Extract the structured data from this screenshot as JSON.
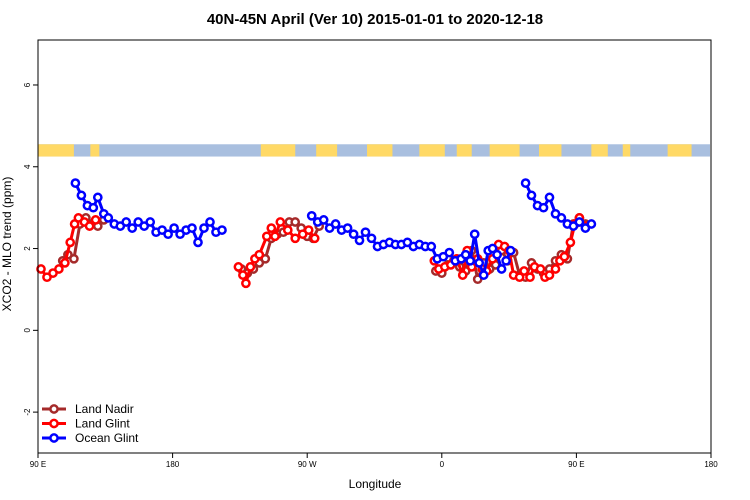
{
  "chart_data": {
    "type": "line",
    "title": "40N-45N April (Ver 10)   2015-01-01 to 2020-12-18",
    "xlabel": "Longitude",
    "ylabel": "XCO2 - MLO trend (ppm)",
    "xlim": [
      90,
      460
    ],
    "ylim": [
      -3,
      7.1
    ],
    "x_ticks": [
      {
        "value": 90,
        "label": "90 E"
      },
      {
        "value": 180,
        "label": "180"
      },
      {
        "value": 270,
        "label": "90 W"
      },
      {
        "value": 360,
        "label": "0"
      },
      {
        "value": 450,
        "label": "90 E"
      },
      {
        "value": 540,
        "label": "180"
      }
    ],
    "y_ticks": [
      {
        "value": -2,
        "label": "-2"
      },
      {
        "value": 0,
        "label": "0"
      },
      {
        "value": 2,
        "label": "2"
      },
      {
        "value": 4,
        "label": "4"
      },
      {
        "value": 6,
        "label": "6"
      }
    ],
    "legend_position": "bottom-left",
    "land_ocean_band": {
      "y_range": [
        4.25,
        4.55
      ],
      "colors": {
        "land": "#ffd966",
        "ocean": "#a9bfdf"
      },
      "land_segments": [
        [
          90,
          114
        ],
        [
          125,
          131
        ],
        [
          239,
          262
        ],
        [
          276,
          290
        ],
        [
          310,
          327
        ],
        [
          345,
          362
        ],
        [
          370,
          380
        ],
        [
          392,
          412
        ],
        [
          425,
          440
        ],
        [
          460,
          471
        ],
        [
          481,
          486
        ],
        [
          511,
          527
        ]
      ]
    },
    "series": [
      {
        "name": "Land Nadir",
        "color": "#a52a2a",
        "segments": [
          {
            "x": [
              106.5,
              110,
              114,
              118,
              122,
              126,
              130,
              134
            ],
            "y": [
              1.7,
              1.85,
              1.75,
              2.6,
              2.75,
              2.6,
              2.55,
              2.7
            ]
          },
          {
            "x": [
              226,
              230,
              234,
              238,
              242,
              246,
              250,
              254,
              258,
              262,
              266,
              270,
              274,
              278
            ],
            "y": [
              1.5,
              1.4,
              1.5,
              1.65,
              1.75,
              2.25,
              2.35,
              2.4,
              2.65,
              2.65,
              2.5,
              2.3,
              2.25,
              2.55
            ]
          },
          {
            "x": [
              356,
              360,
              364,
              368,
              372,
              376,
              380,
              384,
              388,
              392,
              396,
              400,
              404,
              408,
              412,
              416,
              420,
              424
            ],
            "y": [
              1.45,
              1.4,
              1.6,
              1.7,
              1.55,
              1.45,
              1.95,
              1.25,
              1.65,
              1.5,
              1.6,
              1.95,
              1.7,
              1.9,
              1.35,
              1.3,
              1.65,
              1.5
            ]
          },
          {
            "x": [
              428,
              432,
              436,
              440,
              444,
              448,
              452,
              456
            ],
            "y": [
              1.4,
              1.5,
              1.7,
              1.85,
              1.75,
              2.6,
              2.75,
              2.6
            ]
          }
        ]
      },
      {
        "name": "Land Glint",
        "color": "#ff0000",
        "segments": [
          {
            "x": [
              92,
              96,
              100,
              104,
              108,
              111.5,
              114.5,
              117,
              121,
              124.5,
              128.5
            ],
            "y": [
              1.5,
              1.3,
              1.4,
              1.5,
              1.65,
              2.15,
              2.6,
              2.75,
              2.65,
              2.55,
              2.7
            ]
          },
          {
            "x": [
              224,
              227,
              229,
              232,
              235,
              238,
              243,
              246,
              248.5,
              252,
              257,
              262,
              267,
              271,
              275
            ],
            "y": [
              1.55,
              1.35,
              1.15,
              1.55,
              1.75,
              1.85,
              2.3,
              2.5,
              2.3,
              2.65,
              2.45,
              2.25,
              2.35,
              2.45,
              2.25
            ]
          },
          {
            "x": [
              355,
              358,
              362,
              366,
              370,
              374,
              377,
              380,
              384,
              387,
              390,
              394,
              398,
              402,
              405,
              408,
              412,
              415,
              419,
              422,
              426,
              429,
              432,
              436,
              439,
              442,
              446,
              449,
              452,
              456
            ],
            "y": [
              1.7,
              1.5,
              1.55,
              1.6,
              1.75,
              1.35,
              1.95,
              1.55,
              1.75,
              1.5,
              1.45,
              1.75,
              2.1,
              2.05,
              1.95,
              1.35,
              1.3,
              1.45,
              1.3,
              1.55,
              1.5,
              1.3,
              1.35,
              1.5,
              1.7,
              1.8,
              2.15,
              2.6,
              2.75,
              2.55
            ]
          }
        ]
      },
      {
        "name": "Ocean Glint",
        "color": "#0000ff",
        "segments": [
          {
            "x": [
              115,
              119,
              123,
              127,
              130,
              134,
              137,
              141,
              145,
              149,
              153,
              157,
              161,
              165,
              169,
              173,
              177,
              181,
              185,
              189,
              193,
              197,
              201,
              205,
              209,
              213
            ],
            "y": [
              3.6,
              3.3,
              3.05,
              3.0,
              3.25,
              2.85,
              2.75,
              2.6,
              2.55,
              2.65,
              2.5,
              2.65,
              2.55,
              2.65,
              2.4,
              2.45,
              2.35,
              2.5,
              2.35,
              2.45,
              2.5,
              2.15,
              2.5,
              2.65,
              2.4,
              2.45
            ]
          },
          {
            "x": [
              273,
              277,
              281,
              285,
              289,
              293,
              297,
              301,
              305,
              309,
              313,
              317,
              321,
              325,
              329,
              333,
              337,
              341,
              345,
              349,
              353,
              357,
              361,
              365,
              369,
              373,
              376,
              379,
              382,
              385,
              388,
              391,
              394,
              397,
              400,
              403,
              406
            ],
            "y": [
              2.8,
              2.65,
              2.7,
              2.5,
              2.6,
              2.45,
              2.5,
              2.35,
              2.2,
              2.4,
              2.25,
              2.05,
              2.1,
              2.15,
              2.1,
              2.1,
              2.15,
              2.05,
              2.1,
              2.05,
              2.05,
              1.75,
              1.8,
              1.9,
              1.7,
              1.75,
              1.85,
              1.7,
              2.35,
              1.65,
              1.35,
              1.95,
              2.0,
              1.85,
              1.5,
              1.7,
              1.95
            ]
          },
          {
            "x": [
              416,
              420,
              424,
              428,
              432,
              436,
              440,
              444,
              448,
              452,
              456,
              460
            ],
            "y": [
              3.6,
              3.3,
              3.05,
              3.0,
              3.25,
              2.85,
              2.75,
              2.6,
              2.55,
              2.65,
              2.5,
              2.6
            ]
          }
        ]
      }
    ]
  }
}
